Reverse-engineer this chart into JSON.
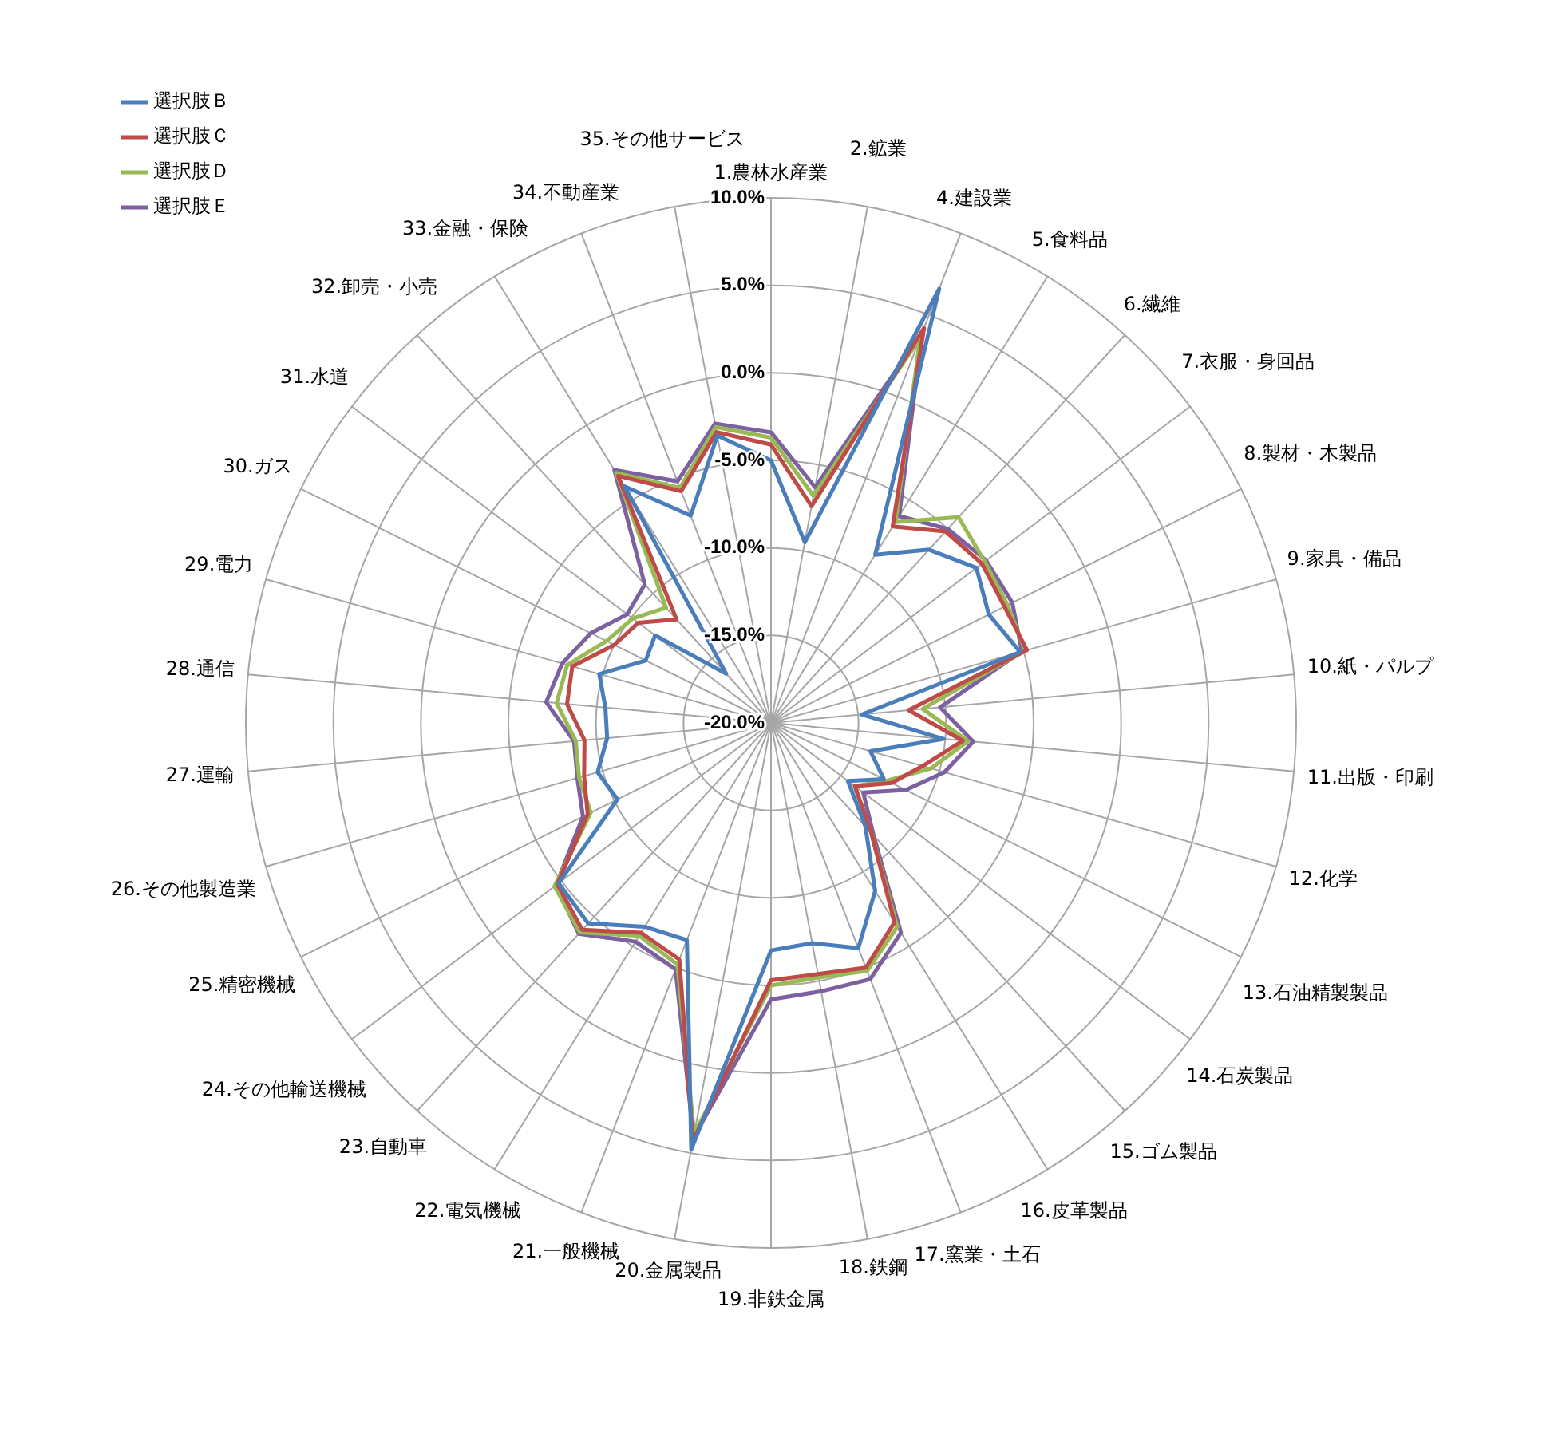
{
  "chart_data": {
    "type": "radar",
    "categories": [
      "1.農林水産業",
      "2.鉱業",
      "4.建設業",
      "5.食料品",
      "6.繊維",
      "7.衣服・身回品",
      "8.製材・木製品",
      "9.家具・備品",
      "10.紙・パルプ",
      "11.出版・印刷",
      "12.化学",
      "13.石油精製製品",
      "14.石炭製品",
      "15.ゴム製品",
      "16.皮革製品",
      "17.窯業・土石",
      "18.鉄鋼",
      "19.非鉄金属",
      "20.金属製品",
      "21.一般機械",
      "22.電気機械",
      "23.自動車",
      "24.その他輸送機械",
      "25.精密機械",
      "26.その他製造業",
      "27.運輸",
      "28.通信",
      "29.電力",
      "30.ガス",
      "31.水道",
      "32.卸売・小売",
      "33.金融・保険",
      "34.不動産業",
      "35.その他サービス"
    ],
    "series": [
      {
        "name": "選択肢Ｂ",
        "color": "#4a7ebb",
        "values": [
          -5.0,
          -9.5,
          6.6,
          -8.7,
          -6.6,
          -5.3,
          -6.1,
          -5.2,
          -14.8,
          -10.1,
          -14.1,
          -12.8,
          -14.5,
          -12.0,
          -8.7,
          -6.2,
          -7.2,
          -7.0,
          4.8,
          -6.7,
          -6.3,
          -4.5,
          -4.8,
          -10.2,
          -9.7,
          -10.6,
          -10.5,
          -9.8,
          -12.0,
          -11.7,
          -16.2,
          -4.1,
          -7.3,
          -3.3
        ]
      },
      {
        "name": "選択肢Ｃ",
        "color": "#be4b48",
        "values": [
          -4.1,
          -7.4,
          4.2,
          -6.8,
          -5.2,
          -4.9,
          -5.1,
          -4.8,
          -12.1,
          -9.0,
          -11.0,
          -12.3,
          -14.0,
          -11.5,
          -6.6,
          -5.0,
          -5.4,
          -5.3,
          4.3,
          -5.5,
          -5.9,
          -4.0,
          -4.7,
          -8.3,
          -8.9,
          -9.3,
          -8.3,
          -8.2,
          -10.0,
          -10.5,
          -12.0,
          -3.4,
          -5.8,
          -3.1
        ]
      },
      {
        "name": "選択肢Ｄ",
        "color": "#98b954",
        "values": [
          -3.7,
          -6.8,
          3.6,
          -6.5,
          -4.1,
          -4.7,
          -4.9,
          -4.9,
          -11.3,
          -8.7,
          -10.5,
          -12.6,
          -14.0,
          -11.5,
          -6.3,
          -4.8,
          -5.2,
          -5.0,
          3.9,
          -5.2,
          -5.7,
          -3.8,
          -4.5,
          -8.5,
          -8.6,
          -8.8,
          -7.7,
          -7.9,
          -9.5,
          -10.1,
          -11.1,
          -3.2,
          -5.6,
          -2.8
        ]
      },
      {
        "name": "選択肢Ｅ",
        "color": "#7d60a0",
        "values": [
          -3.4,
          -6.3,
          3.9,
          -6.1,
          -5.0,
          -4.6,
          -4.6,
          -5.1,
          -10.3,
          -8.4,
          -9.7,
          -11.4,
          -13.4,
          -11.3,
          -5.9,
          -4.3,
          -4.4,
          -4.2,
          4.1,
          -4.9,
          -5.3,
          -3.7,
          -4.6,
          -8.0,
          -8.5,
          -8.7,
          -7.1,
          -7.6,
          -8.5,
          -9.7,
          -9.3,
          -3.0,
          -5.2,
          -2.6
        ]
      }
    ],
    "ylim": [
      -20,
      10
    ],
    "yticks": [
      {
        "value": -20,
        "label": "-20.0%"
      },
      {
        "value": -15,
        "label": "-15.0%"
      },
      {
        "value": -10,
        "label": "-10.0%"
      },
      {
        "value": -5,
        "label": "-5.0%"
      },
      {
        "value": 0,
        "label": "0.0%"
      },
      {
        "value": 5,
        "label": "5.0%"
      },
      {
        "value": 10,
        "label": "10.0%"
      }
    ],
    "grid": true,
    "legend": "top left",
    "marker": "none",
    "line_style": "solid"
  }
}
